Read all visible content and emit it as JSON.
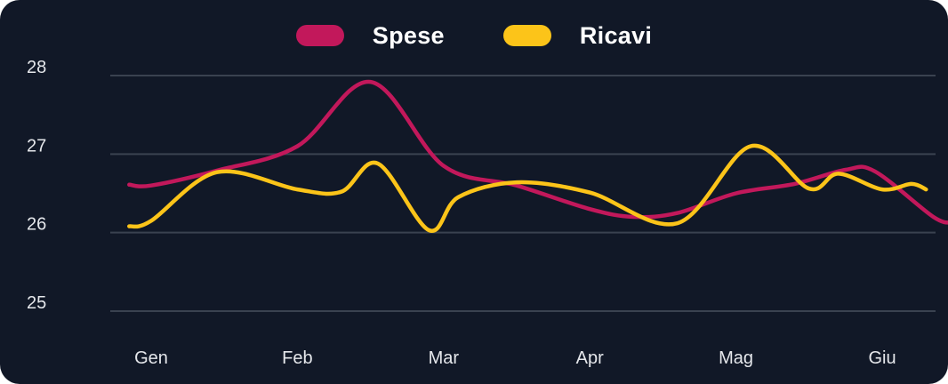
{
  "chart_data": {
    "type": "line",
    "title": "",
    "xlabel": "",
    "ylabel": "",
    "categories": [
      "Gen",
      "Feb",
      "Mar",
      "Apr",
      "Mag",
      "Giu"
    ],
    "ylim": [
      25,
      28
    ],
    "y_ticks": [
      25,
      26,
      27,
      28
    ],
    "grid": true,
    "legend_position": "top-center",
    "series": [
      {
        "name": "Spese",
        "color": "#c2185b",
        "points": [
          {
            "x": -0.15,
            "y": 26.61
          },
          {
            "x": 0.0,
            "y": 26.6
          },
          {
            "x": 0.45,
            "y": 26.79
          },
          {
            "x": 1.0,
            "y": 27.1
          },
          {
            "x": 1.5,
            "y": 27.92
          },
          {
            "x": 2.0,
            "y": 26.85
          },
          {
            "x": 2.5,
            "y": 26.6
          },
          {
            "x": 3.0,
            "y": 26.3
          },
          {
            "x": 3.3,
            "y": 26.2
          },
          {
            "x": 3.6,
            "y": 26.25
          },
          {
            "x": 4.0,
            "y": 26.5
          },
          {
            "x": 4.4,
            "y": 26.62
          },
          {
            "x": 4.75,
            "y": 26.8
          },
          {
            "x": 4.95,
            "y": 26.78
          },
          {
            "x": 5.35,
            "y": 26.2
          },
          {
            "x": 5.48,
            "y": 26.13
          }
        ]
      },
      {
        "name": "Ricavi",
        "color": "#fcc419",
        "points": [
          {
            "x": -0.15,
            "y": 26.08
          },
          {
            "x": 0.0,
            "y": 26.15
          },
          {
            "x": 0.45,
            "y": 26.77
          },
          {
            "x": 1.0,
            "y": 26.55
          },
          {
            "x": 1.3,
            "y": 26.52
          },
          {
            "x": 1.55,
            "y": 26.88
          },
          {
            "x": 1.9,
            "y": 26.03
          },
          {
            "x": 2.1,
            "y": 26.45
          },
          {
            "x": 2.5,
            "y": 26.64
          },
          {
            "x": 3.0,
            "y": 26.51
          },
          {
            "x": 3.6,
            "y": 26.12
          },
          {
            "x": 4.1,
            "y": 27.1
          },
          {
            "x": 4.5,
            "y": 26.56
          },
          {
            "x": 4.7,
            "y": 26.75
          },
          {
            "x": 5.0,
            "y": 26.55
          },
          {
            "x": 5.2,
            "y": 26.62
          },
          {
            "x": 5.3,
            "y": 26.55
          }
        ]
      }
    ]
  }
}
